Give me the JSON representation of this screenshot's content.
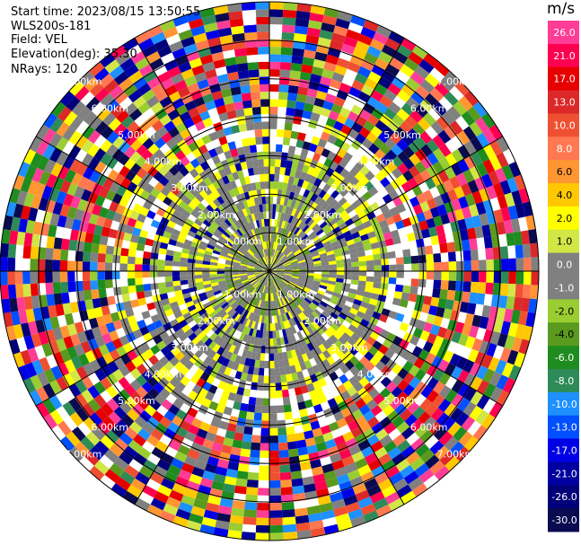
{
  "header": {
    "start_time": "Start time: 2023/08/15 13:50:55",
    "instrument": "WLS200s-181",
    "field": "Field: VEL",
    "elevation": "Elevation(deg): 35.30",
    "nrays": "NRays: 120"
  },
  "colorbar": {
    "unit": "m/s",
    "ticks": [
      "26.0",
      "21.0",
      "17.0",
      "13.0",
      "10.0",
      "8.0",
      "6.0",
      "4.0",
      "2.0",
      "1.0",
      "0.0",
      "-1.0",
      "-2.0",
      "-4.0",
      "-6.0",
      "-8.0",
      "-10.0",
      "-13.0",
      "-17.0",
      "-21.0",
      "-26.0",
      "-30.0"
    ],
    "colors": [
      "#ff3c96",
      "#ff0050",
      "#e60000",
      "#dc2828",
      "#f05032",
      "#ff7850",
      "#ff9632",
      "#ffc800",
      "#ffff00",
      "#d2e646",
      "#808080",
      "#808080",
      "#9acd32",
      "#5a9a1e",
      "#1e8c1e",
      "#2e8b57",
      "#1e90ff",
      "#0050ff",
      "#0000e6",
      "#0000a0",
      "#000078",
      "#0a0a50"
    ]
  },
  "chart_data": {
    "type": "ppi",
    "field": "VEL",
    "nrays": 120,
    "range_ring_labels": [
      "1.00km",
      "2.00km",
      "3.00km",
      "4.00km",
      "5.00km",
      "6.00km",
      "7.00km"
    ],
    "crosshair_angles_deg": [
      0,
      30,
      60,
      90,
      120,
      150
    ]
  }
}
